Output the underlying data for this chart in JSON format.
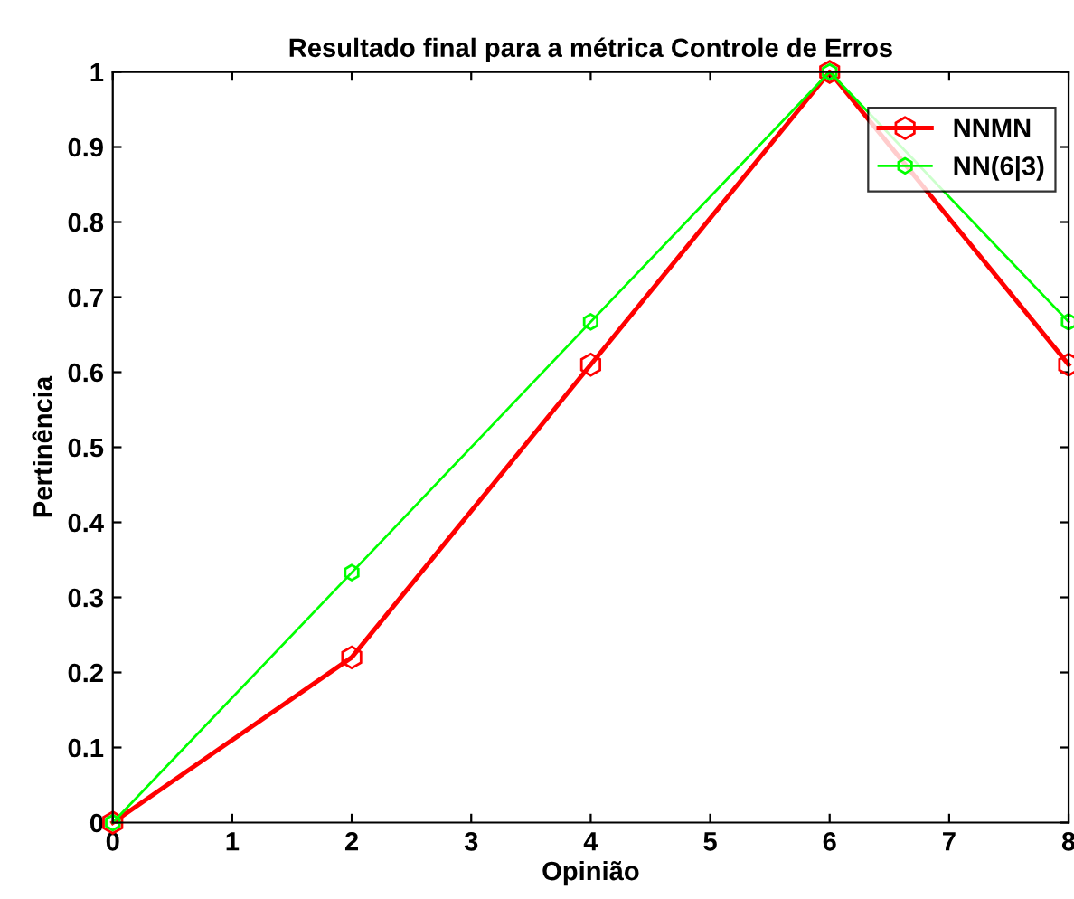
{
  "chart_data": {
    "type": "line",
    "title": "Resultado final para a métrica Controle de Erros",
    "xlabel": "Opinião",
    "ylabel": "Pertinência",
    "x": [
      0,
      2,
      4,
      6,
      8
    ],
    "series": [
      {
        "name": "NNMN",
        "color": "#ff0000",
        "values": [
          0,
          0.22,
          0.61,
          1,
          0.61
        ]
      },
      {
        "name": "NN(6|3)",
        "color": "#00ff00",
        "values": [
          0,
          0.333,
          0.667,
          1,
          0.667
        ]
      }
    ],
    "xlim": [
      0,
      8
    ],
    "ylim": [
      0,
      1
    ],
    "xticks": [
      0,
      1,
      2,
      3,
      4,
      5,
      6,
      7,
      8
    ],
    "yticks": [
      0,
      0.1,
      0.2,
      0.3,
      0.4,
      0.5,
      0.6,
      0.7,
      0.8,
      0.9,
      1
    ],
    "grid": false,
    "legend": "top right",
    "marker": "star",
    "line_style": "solid"
  }
}
